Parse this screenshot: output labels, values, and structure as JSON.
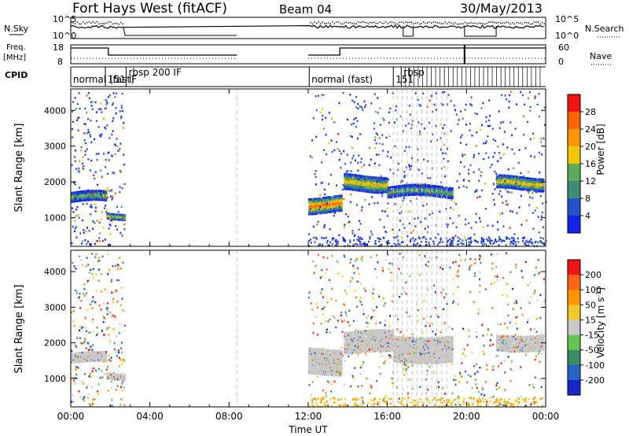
{
  "header": {
    "station": "Fort Hays West (fitACF)",
    "beam": "Beam 04",
    "date": "30/May/2013"
  },
  "strips": {
    "nsky_label": "N.Sky",
    "nsky_ticks": [
      "10^5",
      "10^0"
    ],
    "nsearch_label": "N.Search",
    "freq_label_1": "Freq.",
    "freq_label_2": "[MHz]",
    "freq_ticks": [
      "18",
      "8"
    ],
    "nave_ticks": [
      "60",
      "0"
    ],
    "nave_label": "Nave",
    "cpid_label": "CPID",
    "cpid_entries": [
      {
        "text": "normal (fast)",
        "hour": 0.0
      },
      {
        "text": "151 IF",
        "hour": 1.75
      },
      {
        "text": "rbsp 200 IF",
        "hour": 2.8
      },
      {
        "text": "normal (fast)",
        "hour": 12.05
      },
      {
        "text": "151",
        "hour": 16.3
      },
      {
        "text": "rbsp",
        "hour": 16.7
      }
    ]
  },
  "chart_data": [
    {
      "type": "heatmap",
      "name": "power",
      "xlabel": "",
      "ylabel": "Slant Range [km]",
      "x_unit": "hours UT",
      "xlim": [
        0,
        24
      ],
      "ylim": [
        200,
        4600
      ],
      "yticks": [
        1000,
        2000,
        3000,
        4000
      ],
      "colorbar_label": "Power [dB]",
      "colorbar_ticks": [
        4,
        8,
        12,
        16,
        20,
        24,
        28
      ],
      "colorbar_range": [
        0,
        32
      ],
      "colors": [
        "#1424f0",
        "#2850c8",
        "#3c8c78",
        "#5aaa5a",
        "#f0c800",
        "#ff9600",
        "#ff6400",
        "#f01414"
      ],
      "echo_bands": [
        {
          "hours": [
            0.0,
            1.8
          ],
          "range_center_km": 1600,
          "range_halfwidth_km": 130,
          "peak_db": 16
        },
        {
          "hours": [
            1.8,
            2.7
          ],
          "range_center_km": 1100,
          "range_halfwidth_km": 80,
          "peak_db": 20
        },
        {
          "hours": [
            12.0,
            13.7
          ],
          "range_center_km": 1400,
          "range_halfwidth_km": 220,
          "peak_db": 26
        },
        {
          "hours": [
            13.8,
            16.0
          ],
          "range_center_km": 2000,
          "range_halfwidth_km": 220,
          "peak_db": 20
        },
        {
          "hours": [
            16.0,
            19.3
          ],
          "range_center_km": 1750,
          "range_halfwidth_km": 140,
          "peak_db": 14
        },
        {
          "hours": [
            21.5,
            23.9
          ],
          "range_center_km": 2000,
          "range_halfwidth_km": 180,
          "peak_db": 20
        }
      ]
    },
    {
      "type": "heatmap",
      "name": "velocity",
      "xlabel": "Time UT",
      "ylabel": "Slant Range [km]",
      "x_unit": "hours UT",
      "xlim": [
        0,
        24
      ],
      "ylim": [
        200,
        4600
      ],
      "xticks": [
        "00:00",
        "04:00",
        "08:00",
        "12:00",
        "16:00",
        "20:00",
        "00:00"
      ],
      "yticks": [
        1000,
        2000,
        3000,
        4000
      ],
      "colorbar_label": "Velocity [m s^-1]",
      "colorbar_ticks": [
        200,
        100,
        50,
        15,
        -15,
        -50,
        -100,
        -200
      ],
      "colors": [
        "#1428c8",
        "#2864c8",
        "#3c8c64",
        "#64c850",
        "#c8c8c8",
        "#f0c828",
        "#ff9600",
        "#ff6414",
        "#f01414"
      ],
      "echo_bands": [
        {
          "hours": [
            0.0,
            1.8
          ],
          "range_center_km": 1600,
          "range_halfwidth_km": 130,
          "velocity": 0
        },
        {
          "hours": [
            1.8,
            2.7
          ],
          "range_center_km": 1100,
          "range_halfwidth_km": 80,
          "velocity": 0
        },
        {
          "hours": [
            12.0,
            13.7
          ],
          "range_center_km": 1500,
          "range_halfwidth_km": 350,
          "velocity": 0
        },
        {
          "hours": [
            13.8,
            16.3
          ],
          "range_center_km": 2050,
          "range_halfwidth_km": 300,
          "velocity": 0
        },
        {
          "hours": [
            16.3,
            19.3
          ],
          "range_center_km": 1850,
          "range_halfwidth_km": 350,
          "velocity": 0
        },
        {
          "hours": [
            21.5,
            23.9
          ],
          "range_center_km": 2050,
          "range_halfwidth_km": 220,
          "velocity": 0
        }
      ]
    }
  ]
}
